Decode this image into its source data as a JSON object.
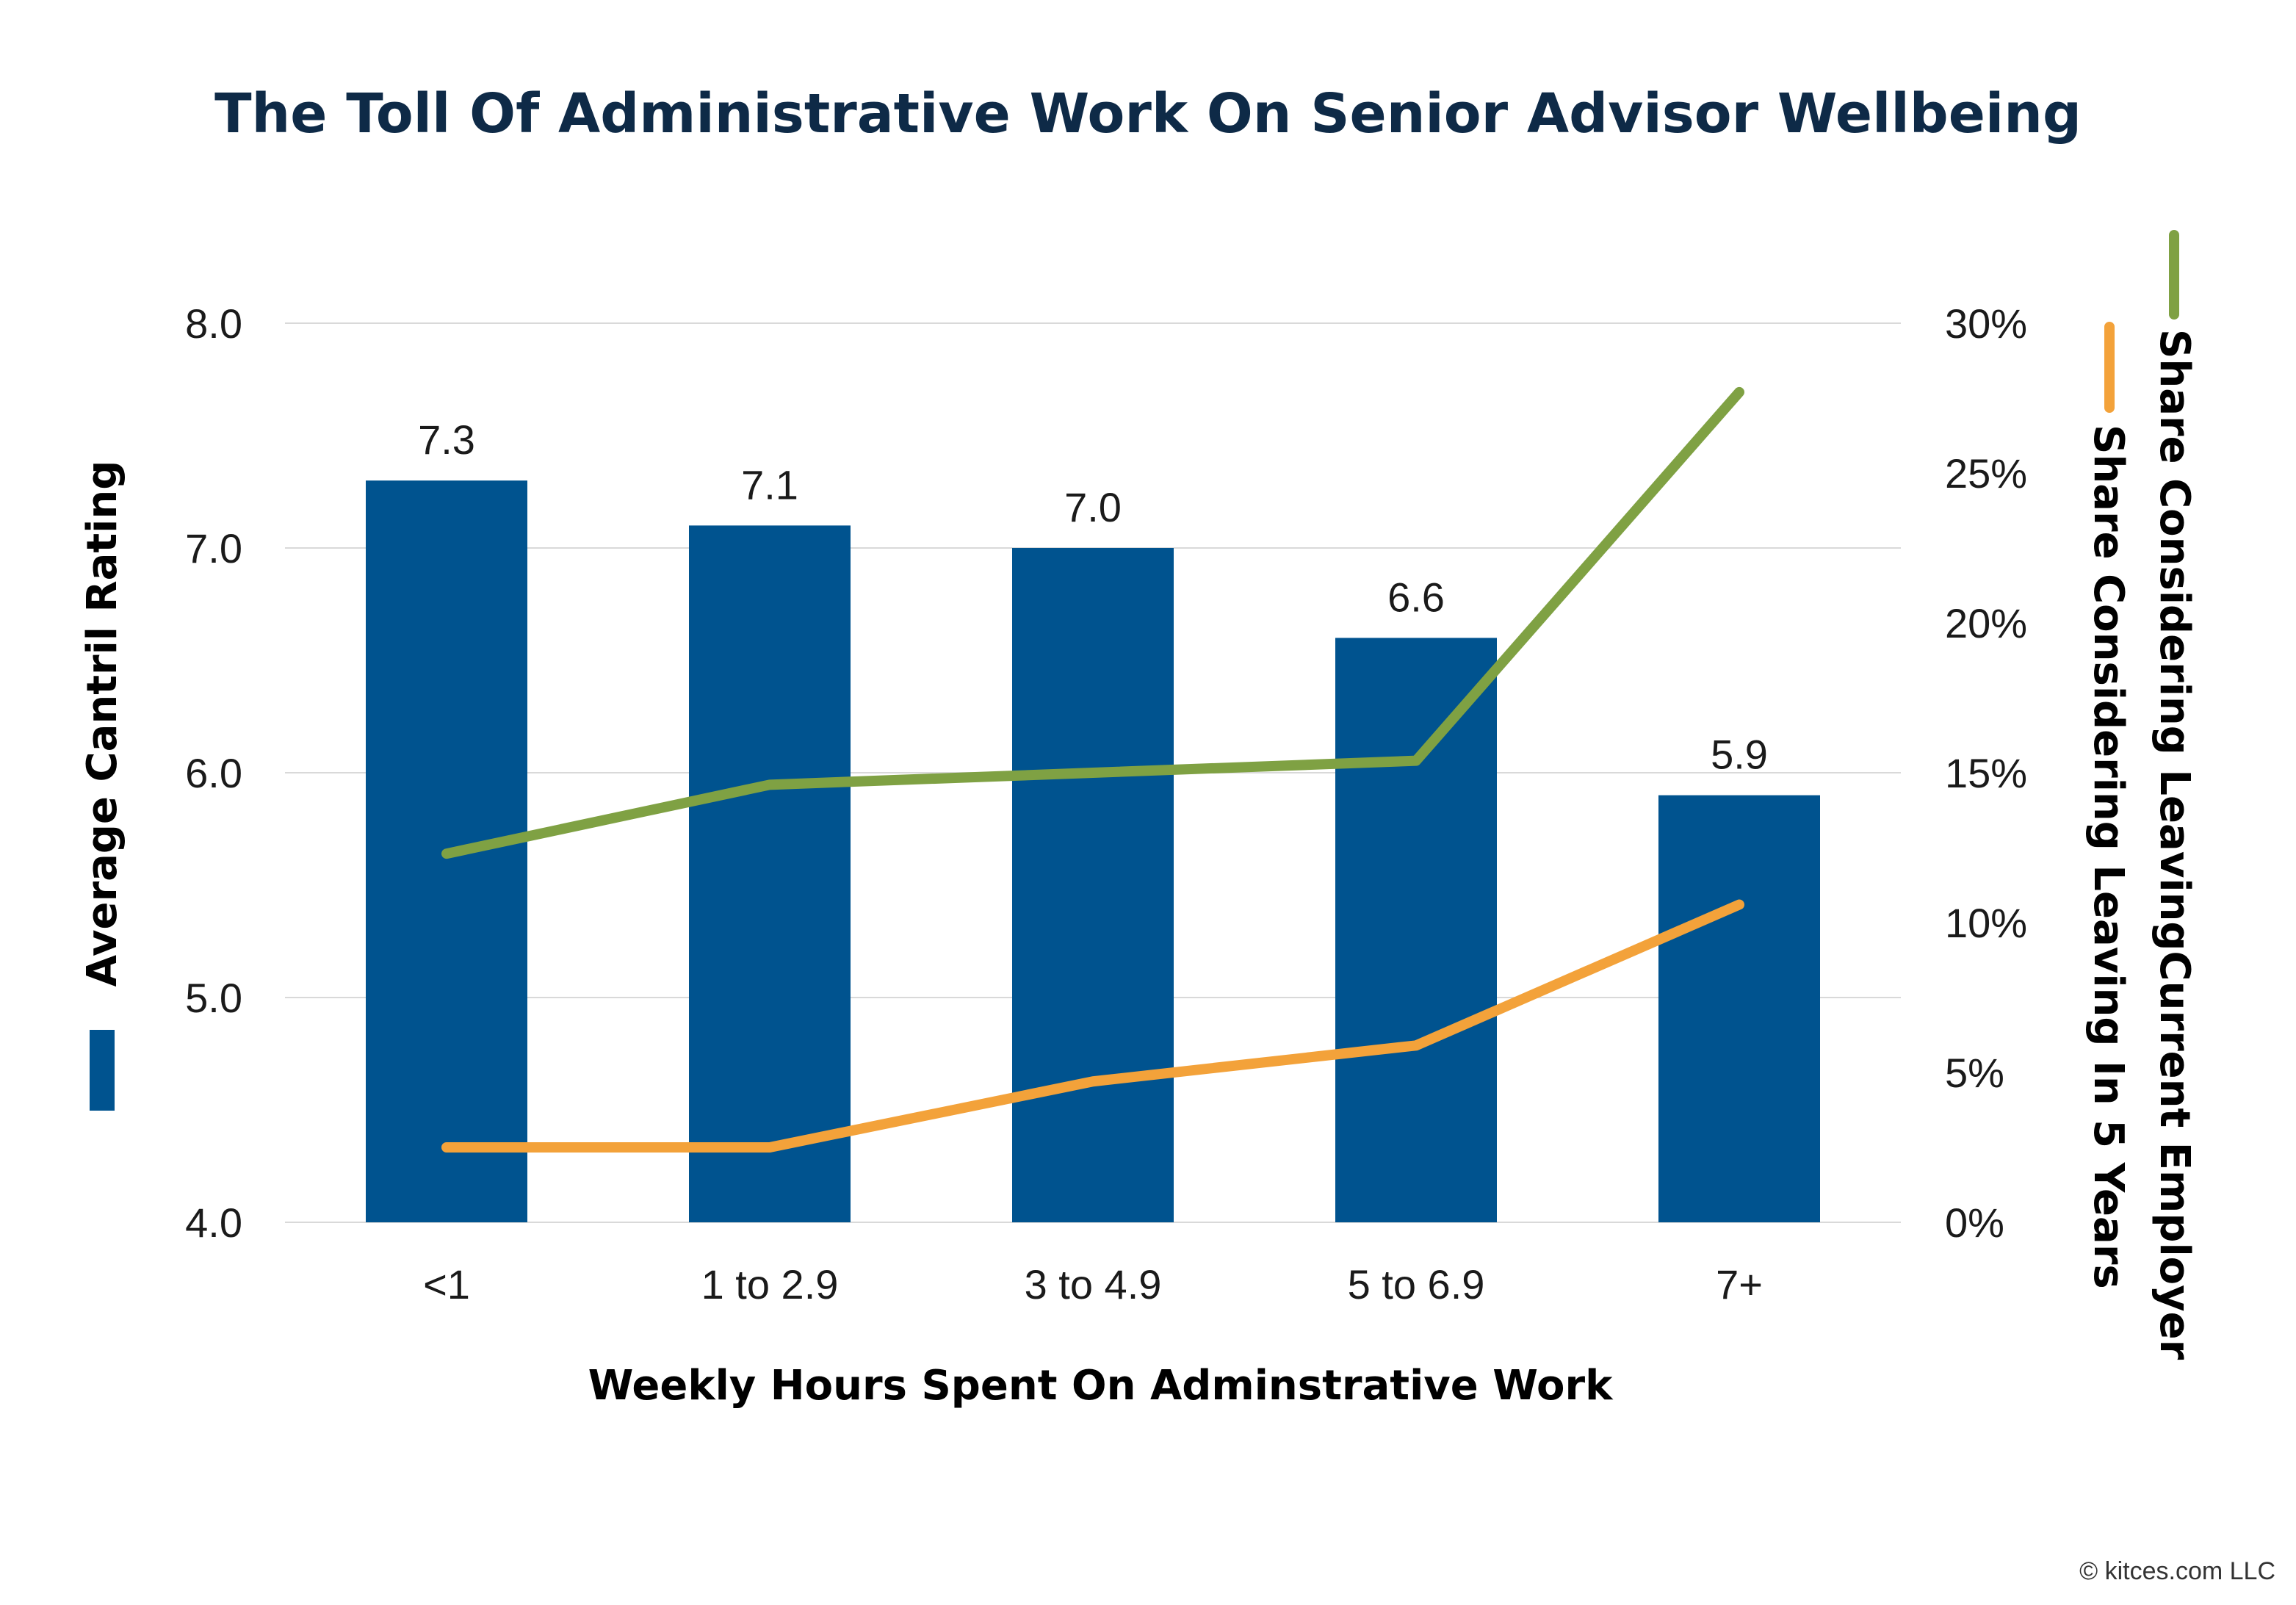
{
  "chart_data": {
    "type": "bar",
    "title": "The Toll Of Administrative Work On Senior Advisor Wellbeing",
    "xlabel": "Weekly Hours Spent On Adminstrative Work",
    "ylabel": "Average Cantril Rating",
    "y2label_1": "Share Considering LeavingCurrent Employer",
    "y2label_2": "Share Considering Leaving In 5 Years",
    "categories": [
      "<1",
      "1 to 2.9",
      "3 to 4.9",
      "5 to 6.9",
      "7+"
    ],
    "ylim": [
      4.0,
      8.0
    ],
    "yticks": [
      "4.0",
      "5.0",
      "6.0",
      "7.0",
      "8.0"
    ],
    "y2lim": [
      0,
      30
    ],
    "y2ticks": [
      "0%",
      "5%",
      "10%",
      "15%",
      "20%",
      "25%",
      "30%"
    ],
    "grid": true,
    "series": [
      {
        "name": "Average Cantril Rating",
        "type": "bar",
        "axis": "left",
        "values": [
          7.3,
          7.1,
          7.0,
          6.6,
          5.9
        ],
        "labels": [
          "7.3",
          "7.1",
          "7.0",
          "6.6",
          "5.9"
        ]
      },
      {
        "name": "Share Considering LeavingCurrent Employer",
        "type": "line",
        "axis": "right",
        "values": [
          12.3,
          14.6,
          15.0,
          15.4,
          27.7
        ]
      },
      {
        "name": "Share Considering Leaving In 5 Years",
        "type": "line",
        "axis": "right",
        "values": [
          2.5,
          2.5,
          4.7,
          5.9,
          10.6
        ]
      }
    ],
    "colors": {
      "bar": "#00538f",
      "line1": "#7fa143",
      "line2": "#f3a23a",
      "grid": "#d9d9d9"
    }
  },
  "credit": "© kitces.com LLC"
}
